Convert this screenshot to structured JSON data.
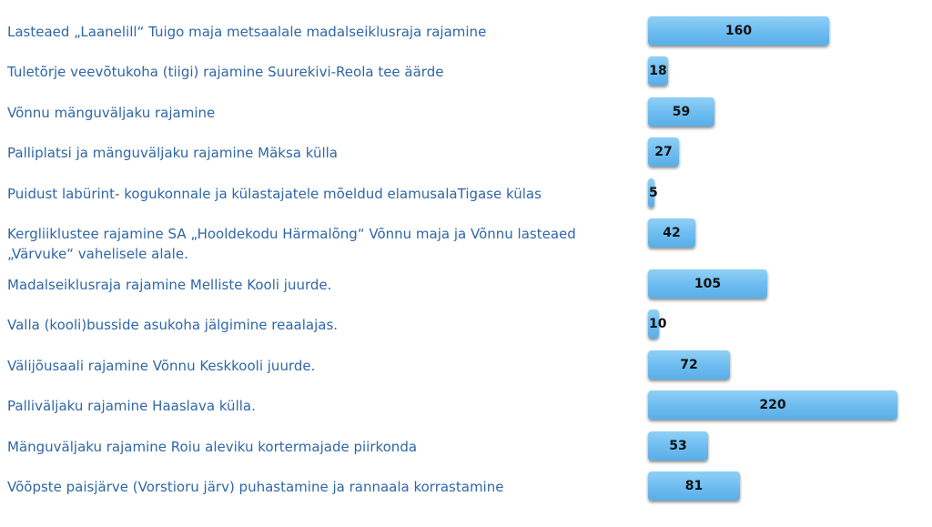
{
  "chart_data": {
    "type": "bar",
    "orientation": "horizontal",
    "categories": [
      "Lasteaed „Laanelill“ Tuigo maja metsaalale madalseiklusraja rajamine",
      "Tuletõrje veevõtukoha (tiigi) rajamine Suurekivi-Reola tee äärde",
      "Võnnu mänguväljaku rajamine",
      "Palliplatsi ja mänguväljaku rajamine Mäksa külla",
      "Puidust labürint- kogukonnale ja külastajatele mõeldud elamusalaTigase külas",
      "Kergliiklustee rajamine SA „Hooldekodu Härmalõng“ Võnnu maja ja Võnnu lasteaed „Värvuke“ vahelisele alale.",
      "Madalseiklusraja rajamine Melliste Kooli juurde.",
      "Valla (kooli)busside asukoha jälgimine reaalajas.",
      "Välijõusaali rajamine Võnnu Keskkooli juurde.",
      "Palliväljaku rajamine Haaslava külla.",
      "Mänguväljaku rajamine Roiu aleviku kortermajade piirkonda",
      "Võõpste paisjärve (Vorstioru järv) puhastamine ja rannaala korrastamine"
    ],
    "values": [
      160,
      18,
      59,
      27,
      5,
      42,
      105,
      10,
      72,
      220,
      53,
      81
    ],
    "title": "",
    "xlabel": "",
    "ylabel": "",
    "xlim": [
      0,
      220
    ],
    "grid": false,
    "legend": "none",
    "data_labels": "inside-bar",
    "colors": {
      "bar": "#6cbcf0",
      "label_text": "#2f67a8",
      "value_text": "#111111"
    }
  }
}
